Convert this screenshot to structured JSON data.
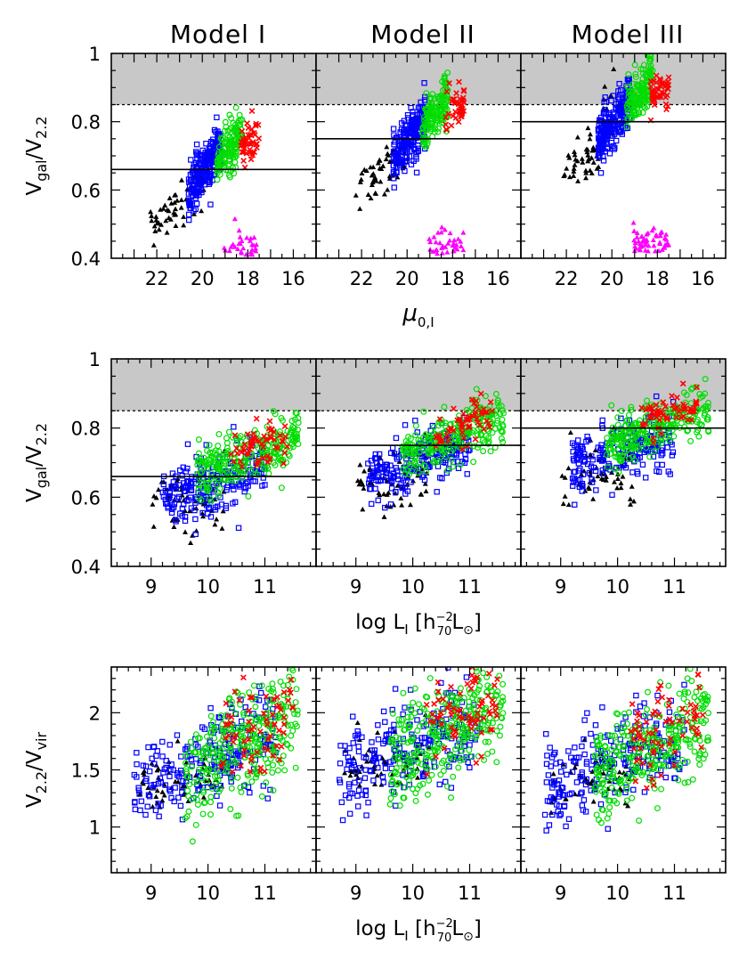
{
  "figure": {
    "model_titles": [
      "Model I",
      "Model II",
      "Model III"
    ],
    "row_ylabels": [
      {
        "main": "V",
        "sub1": "gal",
        "mid": "/V",
        "sub2": "2.2"
      },
      {
        "main": "V",
        "sub1": "gal",
        "mid": "/V",
        "sub2": "2.2"
      },
      {
        "main": "V",
        "sub1": "2.2",
        "mid": "/V",
        "sub2": "vir"
      }
    ],
    "row_xlabels": [
      {
        "main": "μ",
        "sub": "0,I"
      },
      {
        "main": "log L",
        "sub": "I",
        "bracket_open": " [h",
        "exp": "−2",
        "sub2": "70",
        "unit": "L",
        "unit_sub": "⊙",
        "bracket_close": "]"
      },
      {
        "main": "log L",
        "sub": "I",
        "bracket_open": " [h",
        "exp": "−2",
        "sub2": "70",
        "unit": "L",
        "unit_sub": "⊙",
        "bracket_close": "]"
      }
    ]
  },
  "chart_data": [
    {
      "type": "scatter",
      "row": 0,
      "xlabel": "μ0,I",
      "ylabel": "Vgal/V2.2",
      "xlim": [
        24,
        15
      ],
      "ylim": [
        0.4,
        1.0
      ],
      "xticks": [
        22,
        20,
        18,
        16
      ],
      "yticks": [
        0.4,
        0.6,
        0.8,
        1
      ],
      "ytick_labels": [
        "0.4",
        "0.6",
        "0.8",
        "1"
      ],
      "shaded_band": [
        0.85,
        1.0
      ],
      "dashed_line": 0.85,
      "hline_per_model": [
        0.66,
        0.75,
        0.8
      ],
      "series": [
        {
          "name": "black triangles",
          "color": "#000000",
          "marker": "triangle"
        },
        {
          "name": "blue squares",
          "color": "#0000ff",
          "marker": "square"
        },
        {
          "name": "green circles",
          "color": "#00dd00",
          "marker": "circle"
        },
        {
          "name": "red crosses",
          "color": "#ff0000",
          "marker": "cross"
        },
        {
          "name": "magenta triangles",
          "color": "#ff00ff",
          "marker": "triangle"
        }
      ]
    },
    {
      "type": "scatter",
      "row": 1,
      "xlabel": "log LI [h70^-2 Lsun]",
      "ylabel": "Vgal/V2.2",
      "xlim": [
        8.3,
        11.9
      ],
      "ylim": [
        0.4,
        1.0
      ],
      "xticks": [
        9,
        10,
        11
      ],
      "yticks": [
        0.4,
        0.6,
        0.8,
        1
      ],
      "ytick_labels": [
        "0.4",
        "0.6",
        "0.8",
        "1"
      ],
      "shaded_band": [
        0.85,
        1.0
      ],
      "dashed_line": 0.85,
      "hline_per_model": [
        0.66,
        0.75,
        0.8
      ],
      "series": [
        {
          "name": "black triangles",
          "color": "#000000",
          "marker": "triangle"
        },
        {
          "name": "blue squares",
          "color": "#0000ff",
          "marker": "square"
        },
        {
          "name": "green circles",
          "color": "#00dd00",
          "marker": "circle"
        },
        {
          "name": "red crosses",
          "color": "#ff0000",
          "marker": "cross"
        }
      ]
    },
    {
      "type": "scatter",
      "row": 2,
      "xlabel": "log LI [h70^-2 Lsun]",
      "ylabel": "V2.2/Vvir",
      "xlim": [
        8.3,
        11.9
      ],
      "ylim": [
        0.6,
        2.4
      ],
      "xticks": [
        9,
        10,
        11
      ],
      "yticks": [
        1,
        1.5,
        2
      ],
      "ytick_labels": [
        "1",
        "1.5",
        "2"
      ],
      "series": [
        {
          "name": "black triangles",
          "color": "#000000",
          "marker": "triangle"
        },
        {
          "name": "blue squares",
          "color": "#0000ff",
          "marker": "square"
        },
        {
          "name": "green circles",
          "color": "#00dd00",
          "marker": "circle"
        },
        {
          "name": "red crosses",
          "color": "#ff0000",
          "marker": "cross"
        }
      ]
    }
  ]
}
